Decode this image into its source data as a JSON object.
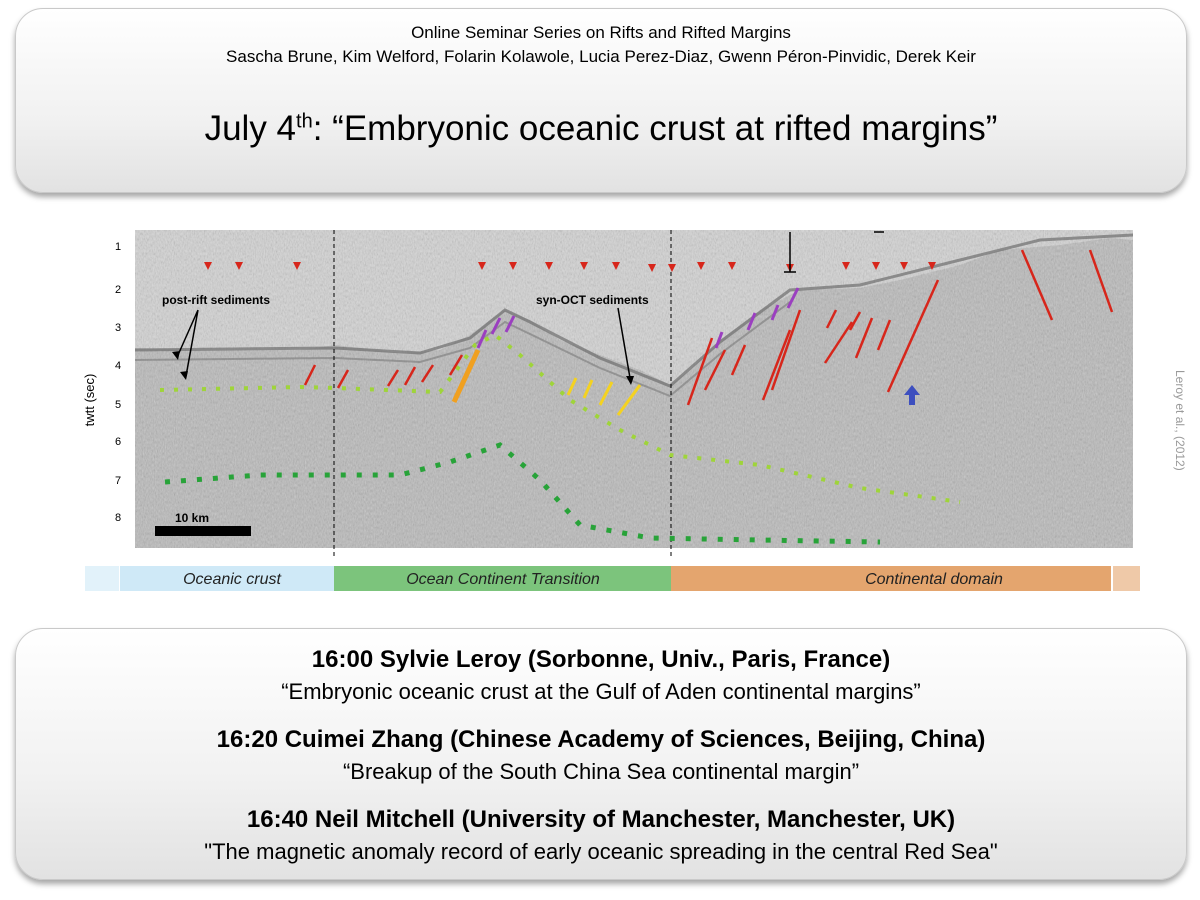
{
  "header": {
    "series": "Online Seminar Series on Rifts and Rifted Margins",
    "organizers": "Sascha Brune, Kim Welford, Folarin Kolawole, Lucia Perez-Diaz, Gwenn Péron-Pinvidic, Derek Keir",
    "date_main": "July 4",
    "date_sup": "th",
    "date_rest": ": “Embryonic oceanic crust at rifted margins”"
  },
  "figure": {
    "y_axis_label": "twtt (sec)",
    "y_ticks": [
      "1",
      "2",
      "3",
      "4",
      "5",
      "6",
      "7",
      "8"
    ],
    "label_post_rift": "post-rift sediments",
    "label_syn_oct": "syn-OCT sediments",
    "scale_bar": "10 km",
    "credit": "Leroy et al., (2012)",
    "domains": [
      "Oceanic crust",
      "Ocean Continent Transition",
      "Continental domain"
    ],
    "domain_colors": [
      "#cfe9f7",
      "#7cc47c",
      "#e4a56e"
    ]
  },
  "talks": [
    {
      "head": "16:00 Sylvie Leroy (Sorbonne, Univ., Paris, France)",
      "title": "“Embryonic oceanic crust at the Gulf of Aden continental margins”"
    },
    {
      "head": "16:20 Cuimei Zhang (Chinese Academy of Sciences, Beijing, China)",
      "title": "“Breakup of the South China Sea continental margin”"
    },
    {
      "head": "16:40 Neil Mitchell (University of Manchester, Manchester, UK)",
      "title": "\"The magnetic anomaly record of early oceanic spreading in the central Red Sea\""
    }
  ]
}
